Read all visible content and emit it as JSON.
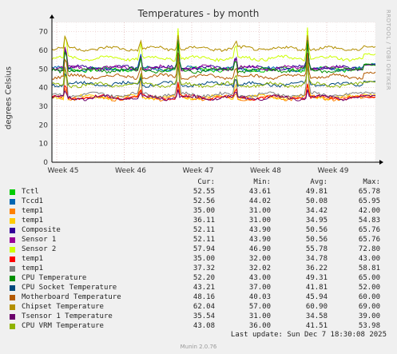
{
  "chart_data": {
    "type": "line",
    "title": "Temperatures - by month",
    "ylabel": "degrees Celsius",
    "side_text": "RRDTOOL / TOBI OETIKER",
    "ylim": [
      0,
      75
    ],
    "yticks": [
      0,
      10,
      20,
      30,
      40,
      50,
      60,
      70
    ],
    "x_tick_labels": [
      "Week 45",
      "Week 46",
      "Week 47",
      "Week 48",
      "Week 49"
    ],
    "grid": true,
    "legend_position": "bottom",
    "columns": [
      "Cur:",
      "Min:",
      "Avg:",
      "Max:"
    ],
    "series": [
      {
        "name": "Tctl",
        "color": "#00cc00",
        "cur": "52.55",
        "min": "43.61",
        "avg": "49.81",
        "max": "65.78"
      },
      {
        "name": "Tccd1",
        "color": "#0066b3",
        "cur": "52.56",
        "min": "44.02",
        "avg": "50.08",
        "max": "65.95"
      },
      {
        "name": "temp1",
        "color": "#ff8000",
        "cur": "35.00",
        "min": "31.00",
        "avg": "34.42",
        "max": "42.00"
      },
      {
        "name": "temp1",
        "color": "#ffcc00",
        "cur": "36.11",
        "min": "31.00",
        "avg": "34.95",
        "max": "54.83"
      },
      {
        "name": "Composite",
        "color": "#330099",
        "cur": "52.11",
        "min": "43.90",
        "avg": "50.56",
        "max": "65.76"
      },
      {
        "name": "Sensor 1",
        "color": "#990099",
        "cur": "52.11",
        "min": "43.90",
        "avg": "50.56",
        "max": "65.76"
      },
      {
        "name": "Sensor 2",
        "color": "#ccff00",
        "cur": "57.94",
        "min": "46.90",
        "avg": "55.78",
        "max": "72.80"
      },
      {
        "name": "temp1",
        "color": "#ff0000",
        "cur": "35.00",
        "min": "32.00",
        "avg": "34.78",
        "max": "43.00"
      },
      {
        "name": "temp1",
        "color": "#808080",
        "cur": "37.32",
        "min": "32.02",
        "avg": "36.22",
        "max": "58.81"
      },
      {
        "name": "CPU Temperature",
        "color": "#008f00",
        "cur": "52.20",
        "min": "43.00",
        "avg": "49.31",
        "max": "65.00"
      },
      {
        "name": "CPU Socket Temperature",
        "color": "#00487d",
        "cur": "43.21",
        "min": "37.00",
        "avg": "41.81",
        "max": "52.00"
      },
      {
        "name": "Motherboard Temperature",
        "color": "#b35a00",
        "cur": "48.16",
        "min": "40.03",
        "avg": "45.94",
        "max": "60.00"
      },
      {
        "name": "Chipset Temperature",
        "color": "#b38f00",
        "cur": "62.04",
        "min": "57.00",
        "avg": "60.90",
        "max": "69.00"
      },
      {
        "name": "Tsensor 1 Temperature",
        "color": "#6b006b",
        "cur": "35.54",
        "min": "31.00",
        "avg": "34.58",
        "max": "39.00"
      },
      {
        "name": "CPU VRM Temperature",
        "color": "#8fb300",
        "cur": "43.08",
        "min": "36.00",
        "avg": "41.51",
        "max": "53.98"
      }
    ]
  },
  "footer": {
    "last_update": "Last update: Sun Dec  7 18:30:08 2025",
    "munin_version": "Munin 2.0.76"
  }
}
